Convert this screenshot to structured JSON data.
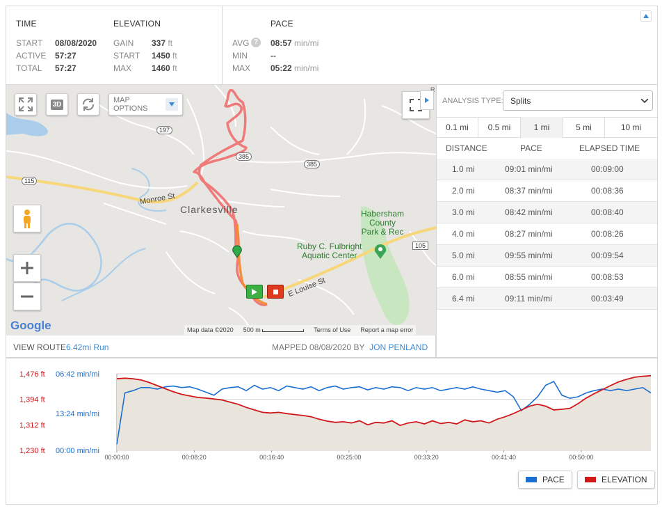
{
  "stats": {
    "time_header": "TIME",
    "elevation_header": "ELEVATION",
    "pace_header": "PACE",
    "start_label": "START",
    "start_value": "08/08/2020",
    "active_label": "ACTIVE",
    "active_value": "57:27",
    "total_label": "TOTAL",
    "total_value": "57:27",
    "gain_label": "GAIN",
    "gain_value": "337",
    "gain_unit": "ft",
    "elev_start_label": "START",
    "elev_start_value": "1450",
    "elev_start_unit": "ft",
    "max_label": "MAX",
    "max_value": "1460",
    "max_unit": "ft",
    "avg_label": "AVG",
    "avg_help": "?",
    "avg_value": "08:57",
    "avg_unit": "min/mi",
    "min_label": "MIN",
    "min_value": "--",
    "pace_max_label": "MAX",
    "pace_max_value": "05:22",
    "pace_max_unit": "min/mi"
  },
  "map": {
    "options_label": "MAP OPTIONS",
    "btn_3d": "3D",
    "town": "Clarkesville",
    "park": [
      "Habersham",
      "County",
      "Park & Rec"
    ],
    "center": [
      "Ruby C. Fulbright",
      "Aquatic Center"
    ],
    "street1": "Monroe St",
    "street2": "E Louise St",
    "shield_197": "197",
    "shield_385a": "385",
    "shield_385b": "385",
    "shield_115": "115",
    "shield_105": "105",
    "google": "Google",
    "map_data": "Map data ©2020",
    "scale": "500 m",
    "terms": "Terms of Use",
    "report": "Report a map error",
    "edge_letter": "R"
  },
  "footer": {
    "view_route": "VIEW ROUTE",
    "route_desc": "6.42mi Run",
    "mapped_label": "MAPPED",
    "mapped_date": "08/08/2020",
    "by": "BY",
    "author": "JON PENLAND"
  },
  "analysis": {
    "label": "ANALYSIS TYPE:",
    "selected": "Splits",
    "tabs": [
      "0.1 mi",
      "0.5 mi",
      "1 mi",
      "5 mi",
      "10 mi"
    ],
    "active_tab": "1 mi",
    "columns": [
      "DISTANCE",
      "PACE",
      "ELAPSED TIME"
    ],
    "rows": [
      [
        "1.0 mi",
        "09:01 min/mi",
        "00:09:00"
      ],
      [
        "2.0 mi",
        "08:37 min/mi",
        "00:08:36"
      ],
      [
        "3.0 mi",
        "08:42 min/mi",
        "00:08:40"
      ],
      [
        "4.0 mi",
        "08:27 min/mi",
        "00:08:26"
      ],
      [
        "5.0 mi",
        "09:55 min/mi",
        "00:09:54"
      ],
      [
        "6.0 mi",
        "08:55 min/mi",
        "00:08:53"
      ],
      [
        "6.4 mi",
        "09:11 min/mi",
        "00:03:49"
      ]
    ]
  },
  "chart_data": {
    "type": "line",
    "elev_ticks": [
      "1,476 ft",
      "1,394 ft",
      "1,312 ft",
      "1,230 ft"
    ],
    "pace_ticks": [
      "06:42 min/mi",
      "13:24 min/mi",
      "00:00 min/mi"
    ],
    "x_ticks": [
      "00:00:00",
      "00:08:20",
      "00:16:40",
      "00:25:00",
      "00:33:20",
      "00:41:40",
      "00:50:00"
    ],
    "legend": [
      "PACE",
      "ELEVATION"
    ],
    "colors": {
      "pace": "#1a6fd1",
      "elevation": "#d0181b"
    },
    "elevation_ft": [
      1460,
      1462,
      1460,
      1456,
      1448,
      1438,
      1428,
      1418,
      1410,
      1405,
      1400,
      1398,
      1395,
      1392,
      1385,
      1378,
      1368,
      1360,
      1352,
      1350,
      1352,
      1348,
      1345,
      1342,
      1338,
      1330,
      1324,
      1320,
      1322,
      1318,
      1325,
      1312,
      1320,
      1318,
      1325,
      1310,
      1318,
      1322,
      1315,
      1325,
      1316,
      1320,
      1315,
      1328,
      1322,
      1325,
      1318,
      1330,
      1338,
      1348,
      1360,
      1372,
      1378,
      1372,
      1360,
      1362,
      1365,
      1380,
      1398,
      1412,
      1425,
      1438,
      1450,
      1458,
      1465,
      1468,
      1470
    ],
    "pace_level": [
      0.08,
      0.75,
      0.78,
      0.82,
      0.82,
      0.8,
      0.83,
      0.84,
      0.82,
      0.83,
      0.8,
      0.76,
      0.72,
      0.8,
      0.82,
      0.83,
      0.78,
      0.85,
      0.8,
      0.82,
      0.78,
      0.84,
      0.82,
      0.8,
      0.83,
      0.78,
      0.82,
      0.84,
      0.8,
      0.82,
      0.83,
      0.79,
      0.82,
      0.8,
      0.83,
      0.82,
      0.78,
      0.82,
      0.8,
      0.82,
      0.78,
      0.8,
      0.82,
      0.8,
      0.83,
      0.8,
      0.78,
      0.76,
      0.78,
      0.7,
      0.52,
      0.6,
      0.7,
      0.85,
      0.9,
      0.72,
      0.68,
      0.7,
      0.75,
      0.78,
      0.8,
      0.78,
      0.8,
      0.78,
      0.8,
      0.82,
      0.75
    ]
  }
}
